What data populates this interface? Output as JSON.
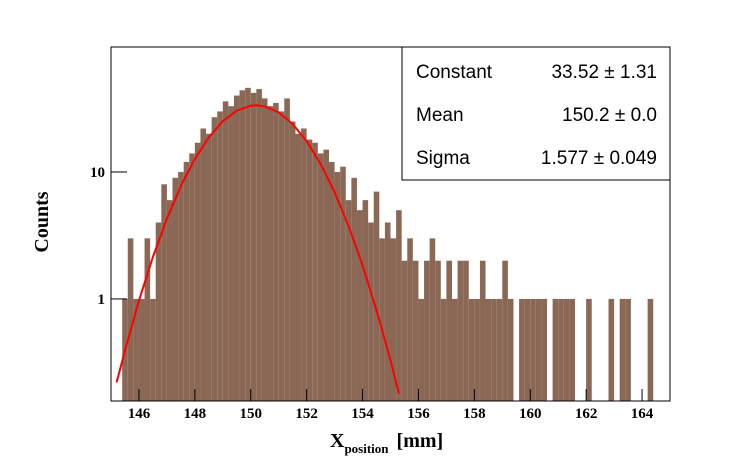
{
  "chart_data": {
    "type": "histogram",
    "xlabel": {
      "main": "X",
      "sub": "position",
      "unit": "[mm]"
    },
    "ylabel": "Counts",
    "color": "#8b6856",
    "log_y": true,
    "bins": [
      145,
      145.2,
      145.4,
      145.6,
      145.8,
      146,
      146.2,
      146.4,
      146.6,
      146.8,
      147,
      147.2,
      147.4,
      147.6,
      147.8,
      148,
      148.2,
      148.4,
      148.6,
      148.8,
      149,
      149.2,
      149.4,
      149.6,
      149.8,
      150,
      150.2,
      150.4,
      150.6,
      150.8,
      151,
      151.2,
      151.4,
      151.6,
      151.8,
      152,
      152.2,
      152.4,
      152.6,
      152.8,
      153,
      153.2,
      153.4,
      153.6,
      153.8,
      154,
      154.2,
      154.4,
      154.6,
      154.8,
      155,
      155.2,
      155.4,
      155.6,
      155.8,
      156,
      156.2,
      156.4,
      156.6,
      156.8,
      157,
      157.2,
      157.4,
      157.6,
      157.8,
      158,
      158.2,
      158.4,
      158.6,
      158.8,
      159,
      159.2,
      159.4,
      159.6,
      159.8,
      160,
      160.2,
      160.4,
      160.6,
      160.8,
      161,
      161.2,
      161.4,
      161.6,
      161.8,
      162,
      162.2,
      162.4,
      162.6,
      162.8,
      163,
      163.2,
      163.4,
      163.6,
      163.8,
      164,
      164.2,
      164.4,
      164.6,
      164.8,
      165
    ],
    "values": [
      0,
      0,
      1,
      3,
      1,
      1,
      3,
      1,
      4,
      8,
      6,
      9,
      10,
      12,
      14,
      17,
      22,
      20,
      27,
      30,
      36,
      33,
      40,
      44,
      46,
      42,
      45,
      38,
      33,
      35,
      30,
      38,
      25,
      20,
      22,
      18,
      17,
      14,
      15,
      12,
      10,
      11,
      6,
      9,
      5,
      6,
      4,
      7,
      3,
      4,
      3,
      5,
      2,
      3,
      2,
      1,
      2,
      3,
      2,
      1,
      2,
      1,
      2,
      2,
      1,
      1,
      2,
      1,
      1,
      1,
      2,
      1,
      0,
      1,
      1,
      1,
      1,
      1,
      0,
      1,
      1,
      1,
      1,
      0,
      0,
      1,
      0,
      0,
      0,
      1,
      0,
      1,
      1,
      0,
      0,
      0,
      1,
      0,
      0,
      0
    ],
    "fit": {
      "color": "#ff0000",
      "x": [
        145.2,
        145.5,
        146,
        146.5,
        147,
        147.5,
        148,
        148.5,
        149,
        149.5,
        150,
        150.2,
        150.5,
        151,
        151.5,
        152,
        152.5,
        153,
        153.5,
        154,
        154.5,
        155,
        155.3
      ],
      "values": [
        0.22,
        0.39,
        0.97,
        2.14,
        4.28,
        7.74,
        12.67,
        18.75,
        25.1,
        30.37,
        33.25,
        33.52,
        32.92,
        29.47,
        23.86,
        17.47,
        11.57,
        6.93,
        3.75,
        1.84,
        0.81,
        0.33,
        0.18
      ]
    },
    "stats": {
      "rows": [
        [
          "Constant",
          "33.52 ± 1.31"
        ],
        [
          "Mean",
          "150.2 ± 0.0"
        ],
        [
          "Sigma",
          "1.577 ± 0.049"
        ]
      ]
    },
    "xlim": [
      145,
      165
    ],
    "ylim": [
      0.157,
      96.5
    ],
    "xticks": [
      146,
      148,
      150,
      152,
      154,
      156,
      158,
      160,
      162,
      164
    ],
    "yticks": [
      1,
      10
    ]
  }
}
